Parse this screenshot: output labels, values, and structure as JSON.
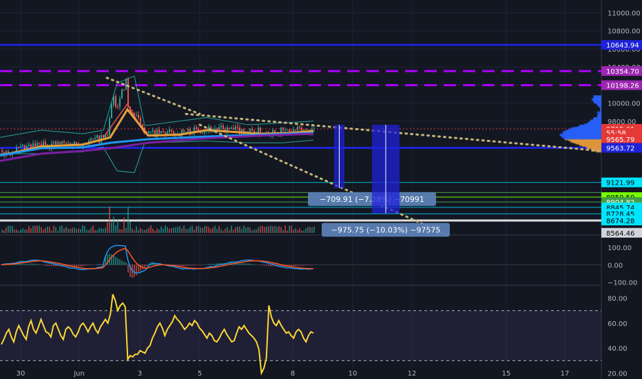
{
  "chart_data": {
    "type": "candlestick",
    "title": "",
    "panes": {
      "price": {
        "ylim": [
          8540,
          11080
        ],
        "y_ticks": [
          9800,
          10000,
          10200,
          10400,
          10600,
          10800,
          11000
        ],
        "y_tick_labels": [
          "9800.00",
          "10000.00",
          "10200.00",
          "10400.00",
          "10600.00",
          "10800.00",
          "11000.00"
        ],
        "candles": {
          "start": 9480,
          "end": 9715.01,
          "noise": 90
        },
        "series": [
          {
            "name": "",
            "color": "#e5a13a",
            "points": [
              [
                0,
                9420
              ],
              [
                60,
                9520
              ],
              [
                120,
                9540
              ],
              [
                160,
                9620
              ],
              [
                185,
                9930
              ],
              [
                215,
                9640
              ],
              [
                260,
                9650
              ],
              [
                300,
                9700
              ],
              [
                340,
                9680
              ],
              [
                380,
                9660
              ],
              [
                420,
                9670
              ],
              [
                455,
                9690
              ]
            ]
          },
          {
            "name": "",
            "color": "#2196f3",
            "points": [
              [
                0,
                9420
              ],
              [
                60,
                9500
              ],
              [
                120,
                9510
              ],
              [
                160,
                9560
              ],
              [
                215,
                9600
              ],
              [
                300,
                9630
              ],
              [
                380,
                9650
              ],
              [
                455,
                9670
              ]
            ]
          },
          {
            "name": "",
            "color": "#7b1fa2",
            "points": [
              [
                0,
                9360
              ],
              [
                60,
                9440
              ],
              [
                120,
                9470
              ],
              [
                160,
                9500
              ],
              [
                215,
                9560
              ],
              [
                300,
                9610
              ],
              [
                380,
                9640
              ],
              [
                455,
                9660
              ]
            ]
          }
        ],
        "price_tags": [
          {
            "label": "10643.94",
            "value": 10643.94,
            "bg": "#1e22d8",
            "fg": "#ffffff"
          },
          {
            "label": "10354.70",
            "value": 10354.7,
            "bg": "#9c27b0",
            "fg": "#ffffff"
          },
          {
            "label": "10198.26",
            "value": 10198.26,
            "bg": "#9c27b0",
            "fg": "#ffffff"
          },
          {
            "label": "9715.01",
            "value": 9715.01,
            "bg": "#e53935",
            "fg": "#ffffff"
          },
          {
            "label": "55:58",
            "value": 9672,
            "bg": "#e53935",
            "fg": "#ffffff"
          },
          {
            "label": "9565.79",
            "value": 9600,
            "bg": "#e53935",
            "fg": "#ffffff"
          },
          {
            "label": "9563.72",
            "value": 9505,
            "bg": "#1e22d8",
            "fg": "#ffffff"
          },
          {
            "label": "9121.99",
            "value": 9121.99,
            "bg": "#00e5ff",
            "fg": "#000000"
          },
          {
            "label": "8959.50",
            "value": 8959.5,
            "bg": "#76ff03",
            "fg": "#000000"
          },
          {
            "label": "8904.82",
            "value": 8904.82,
            "bg": "#43a047",
            "fg": "#ffffff"
          },
          {
            "label": "8845.74",
            "value": 8845.74,
            "bg": "#00e5ff",
            "fg": "#000000"
          },
          {
            "label": "8728.45",
            "value": 8775,
            "bg": "#00e5ff",
            "fg": "#000000"
          },
          {
            "label": "8674.28",
            "value": 8700,
            "bg": "#00e5ff",
            "fg": "#000000"
          },
          {
            "label": "8564.46",
            "value": 8564.46,
            "bg": "#d1d4dc",
            "fg": "#000000"
          }
        ],
        "measures": [
          {
            "label": "−709.91 (−7.28%) −70991",
            "x": [
              485,
              500
            ],
            "y": [
              9760,
              9060
            ],
            "label_anchor": 540
          },
          {
            "label": "−975.75 (−10.03%) −97575",
            "x": [
              540,
              580
            ],
            "y": [
              9760,
              8780
            ],
            "label_anchor": 560
          }
        ]
      },
      "macd": {
        "ylim": [
          -110,
          160
        ],
        "y_ticks": [
          -100,
          0,
          100
        ],
        "y_tick_labels": [
          "−100.00",
          "0.00",
          "100.00"
        ]
      },
      "rsi": {
        "ylim": [
          17,
          88
        ],
        "y_ticks": [
          20,
          40,
          60,
          80
        ],
        "y_tick_labels": [
          "20.00",
          "40.00",
          "60.00",
          "80.00"
        ],
        "band": [
          30,
          70
        ],
        "values": [
          43,
          47,
          52,
          55,
          49,
          45,
          53,
          58,
          54,
          50,
          47,
          57,
          62,
          55,
          52,
          57,
          63,
          58,
          53,
          52,
          49,
          58,
          60,
          55,
          50,
          47,
          55,
          57,
          55,
          51,
          49,
          53,
          58,
          60,
          57,
          53,
          57,
          60,
          55,
          52,
          57,
          60,
          63,
          60,
          67,
          83,
          78,
          70,
          74,
          76,
          73,
          31,
          34,
          33,
          35,
          35,
          38,
          37,
          36,
          40,
          42,
          48,
          52,
          57,
          60,
          56,
          50,
          55,
          58,
          61,
          66,
          63,
          61,
          58,
          55,
          57,
          60,
          58,
          62,
          60,
          56,
          54,
          51,
          48,
          52,
          50,
          46,
          45,
          48,
          52,
          55,
          51,
          48,
          45,
          46,
          52,
          57,
          55,
          58,
          55,
          52,
          50,
          48,
          45,
          39,
          20,
          24,
          32,
          74,
          65,
          60,
          58,
          62,
          58,
          55,
          52,
          53,
          50,
          48,
          53,
          55,
          53,
          48,
          45,
          50,
          53,
          52
        ]
      }
    },
    "x_ticks": [
      "30",
      "Jun",
      "3",
      "5",
      "8",
      "10",
      "12",
      "15",
      "17"
    ],
    "colors": {
      "up": "#26a69a",
      "down": "#ef5350",
      "rsi": "#fdd835",
      "macd": "#2196f3",
      "signal": "#ff5722",
      "trend": "#c2b47a",
      "bg": "#131722"
    }
  }
}
